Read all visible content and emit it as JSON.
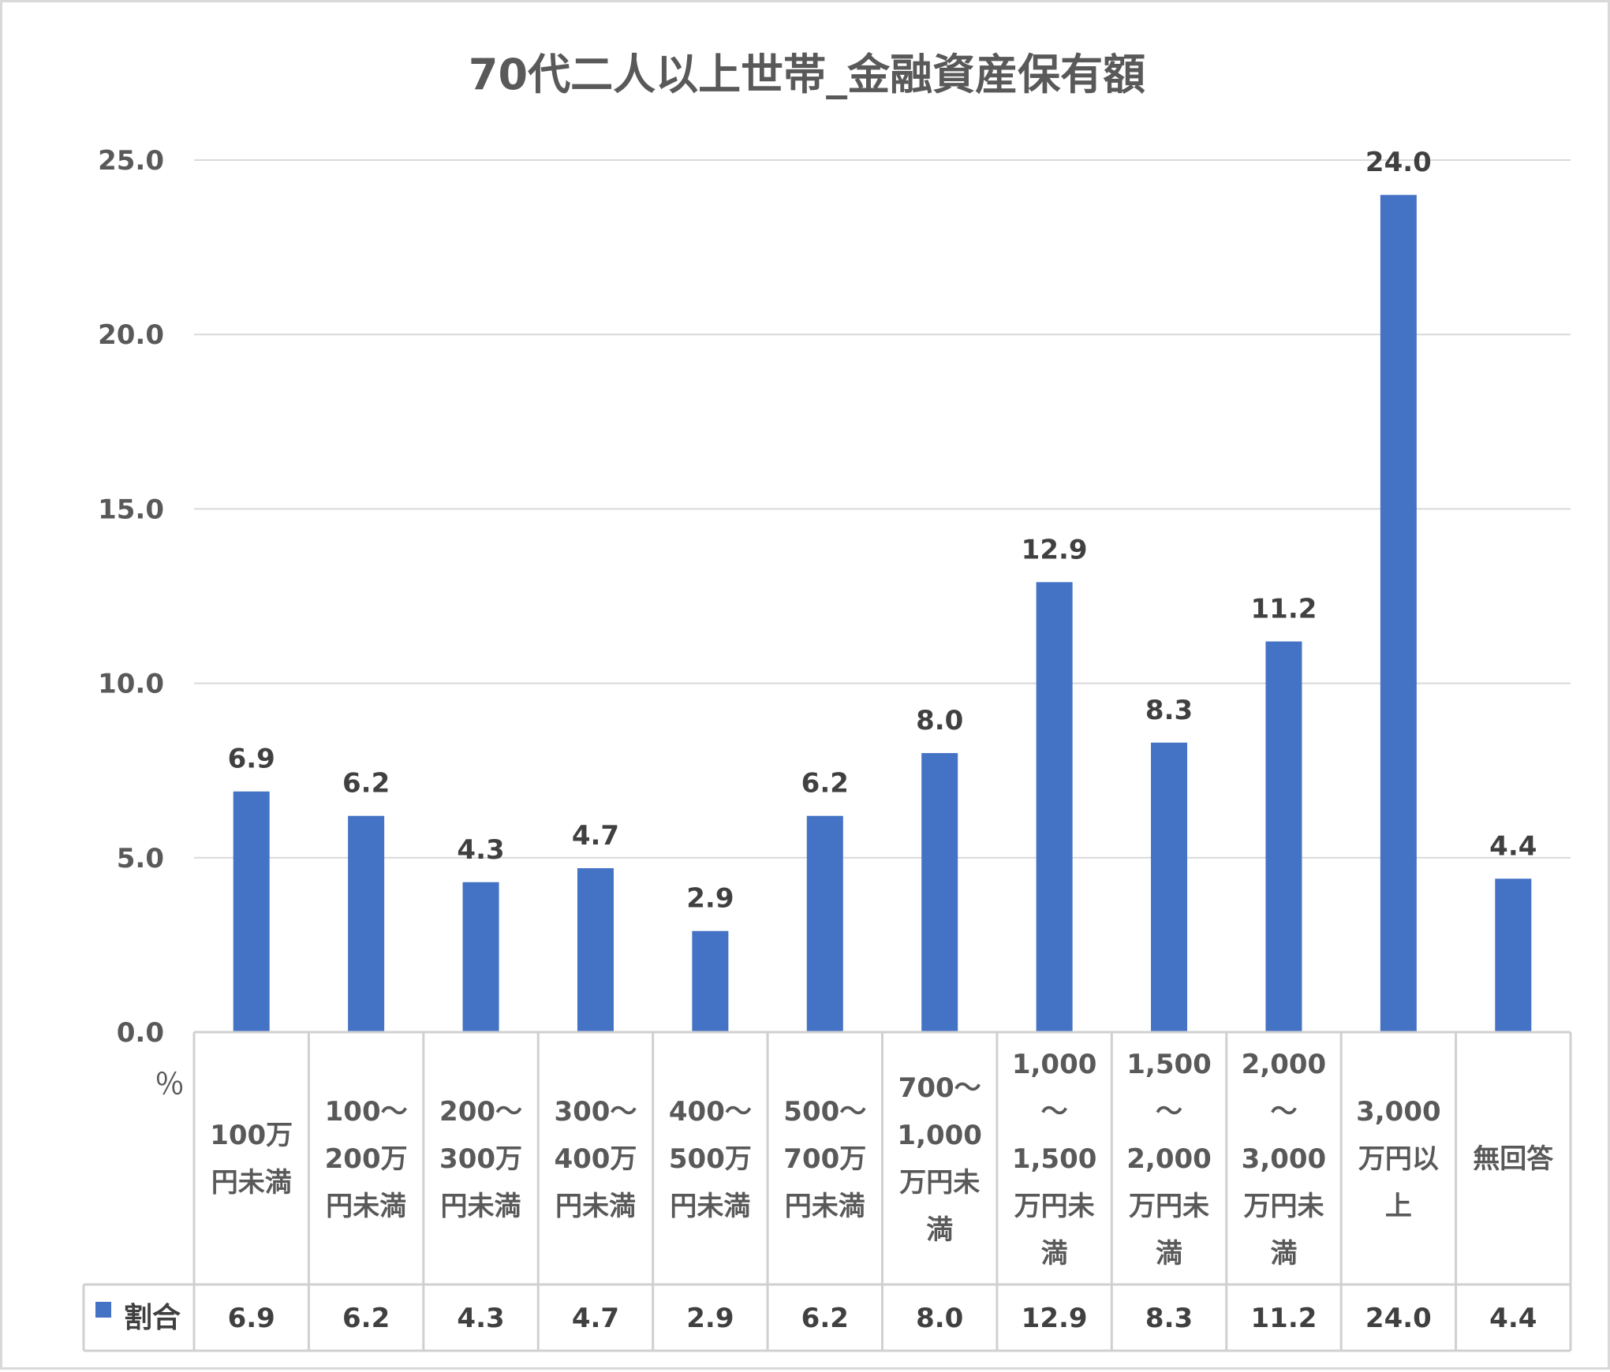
{
  "chart_data": {
    "type": "bar",
    "title": "70代二人以上世帯_金融資産保有額",
    "unit": "％",
    "ylim": [
      0,
      25
    ],
    "yticks": [
      "0.0",
      "5.0",
      "10.0",
      "15.0",
      "20.0",
      "25.0"
    ],
    "grid": true,
    "categories": [
      [
        "100万",
        "円未満"
      ],
      [
        "100～",
        "200万",
        "円未満"
      ],
      [
        "200～",
        "300万",
        "円未満"
      ],
      [
        "300～",
        "400万",
        "円未満"
      ],
      [
        "400～",
        "500万",
        "円未満"
      ],
      [
        "500～",
        "700万",
        "円未満"
      ],
      [
        "700～",
        "1,000",
        "万円未",
        "満"
      ],
      [
        "1,000",
        "～",
        "1,500",
        "万円未",
        "満"
      ],
      [
        "1,500",
        "～",
        "2,000",
        "万円未",
        "満"
      ],
      [
        "2,000",
        "～",
        "3,000",
        "万円未",
        "満"
      ],
      [
        "3,000",
        "万円以",
        "上"
      ],
      [
        "無回答"
      ]
    ],
    "series": [
      {
        "name": "割合",
        "color": "#4472c4",
        "values": [
          6.9,
          6.2,
          4.3,
          4.7,
          2.9,
          6.2,
          8.0,
          12.9,
          8.3,
          11.2,
          24.0,
          4.4
        ],
        "labels": [
          "6.9",
          "6.2",
          "4.3",
          "4.7",
          "2.9",
          "6.2",
          "8.0",
          "12.9",
          "8.3",
          "11.2",
          "24.0",
          "4.4"
        ]
      }
    ]
  }
}
